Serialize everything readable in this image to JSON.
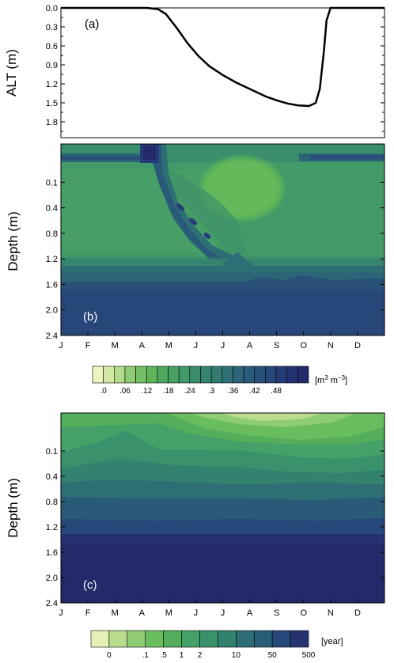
{
  "chart_data": [
    {
      "type": "line",
      "panel_label": "(a)",
      "ylabel": "ALT (m)",
      "y_ticks": [
        "0.0",
        "0.3",
        "0.6",
        "0.9",
        "1.2",
        "1.5",
        "1.8"
      ],
      "y_tick_values": [
        0.0,
        0.3,
        0.6,
        0.9,
        1.2,
        1.5,
        1.8
      ],
      "ylim": [
        0,
        2.05
      ],
      "y_inverted": true,
      "xlim": [
        0,
        12
      ],
      "x": [
        0,
        3.2,
        3.6,
        3.9,
        4.3,
        4.7,
        5.1,
        5.5,
        6.0,
        6.5,
        7.0,
        7.6,
        8.0,
        8.4,
        8.8,
        9.2,
        9.45,
        9.6,
        9.75,
        9.85,
        10.0,
        12
      ],
      "y": [
        0,
        0,
        0.02,
        0.1,
        0.32,
        0.56,
        0.76,
        0.92,
        1.06,
        1.18,
        1.28,
        1.4,
        1.46,
        1.51,
        1.54,
        1.55,
        1.5,
        1.28,
        0.7,
        0.2,
        0,
        0
      ],
      "color": "#000000"
    },
    {
      "type": "heatmap",
      "panel_label": "(b)",
      "ylabel": "Depth (m)",
      "y_ticks": [
        "0.1",
        "0.4",
        "0.8",
        "1.2",
        "1.6",
        "2.0",
        "2.4"
      ],
      "x_ticks": [
        "J",
        "F",
        "M",
        "A",
        "M",
        "J",
        "J",
        "A",
        "S",
        "O",
        "N",
        "D"
      ],
      "colorbar_labels": [
        ".0",
        ".06",
        ".12",
        ".18",
        ".24",
        ".3",
        ".36",
        ".42",
        ".48"
      ],
      "colorbar_unit": "[m3 m-3]",
      "colorbar_levels": 19
    },
    {
      "type": "heatmap",
      "panel_label": "(c)",
      "ylabel": "Depth (m)",
      "y_ticks": [
        "0.1",
        "0.4",
        "0.8",
        "1.2",
        "1.6",
        "2.0",
        "2.4"
      ],
      "x_ticks": [
        "J",
        "F",
        "M",
        "A",
        "M",
        "J",
        "J",
        "A",
        "S",
        "O",
        "N",
        "D"
      ],
      "colorbar_labels": [
        "0",
        ".1",
        ".5",
        "1",
        "2",
        "10",
        "50",
        "500"
      ],
      "colorbar_unit": "[year]",
      "colorbar_levels": 12
    }
  ],
  "colors": {
    "palette": [
      "#eef3c0",
      "#d2e8a4",
      "#b2db8c",
      "#8fcc74",
      "#73bf62",
      "#5fb558",
      "#4fa95f",
      "#49a064",
      "#419869",
      "#3b8e6c",
      "#36846f",
      "#327a72",
      "#2e6f75",
      "#2b6577",
      "#295b78",
      "#285079",
      "#27467a",
      "#263c78",
      "#253272",
      "#24296a"
    ],
    "cb2": [
      "#e6f0b6",
      "#b8dc8c",
      "#8fcc74",
      "#6abd5e",
      "#54ae5c",
      "#44a167",
      "#3a926c",
      "#33816f",
      "#2d6e74",
      "#295d78",
      "#27497a",
      "#25346f"
    ]
  }
}
